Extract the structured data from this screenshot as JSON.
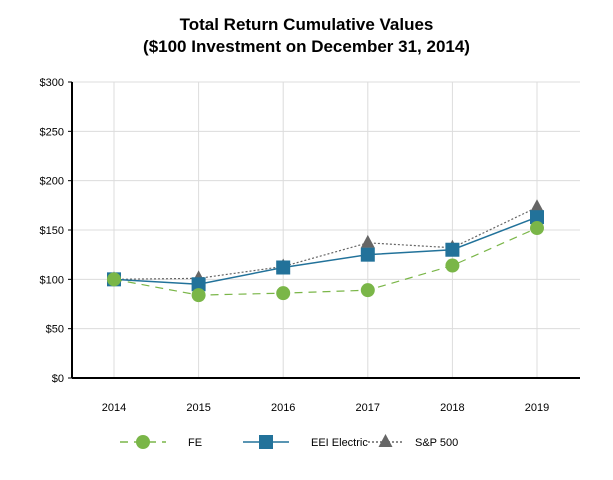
{
  "chart_data": {
    "type": "line",
    "title": "Total Return Cumulative Values",
    "subtitle": "($100 Investment on December 31, 2014)",
    "categories": [
      "2014",
      "2015",
      "2016",
      "2017",
      "2018",
      "2019"
    ],
    "ylim": [
      0,
      300
    ],
    "yticks": [
      "$0",
      "$50",
      "$100",
      "$150",
      "$200",
      "$250",
      "$300"
    ],
    "grid": true,
    "legend": "bottom",
    "series": [
      {
        "name": "FE",
        "values": [
          100,
          84,
          86,
          89,
          114,
          152
        ],
        "color": "#7ab648",
        "marker": "circle",
        "dash": "dashed"
      },
      {
        "name": "EEI Electric",
        "values": [
          100,
          95,
          112,
          125,
          130,
          163
        ],
        "color": "#22729a",
        "marker": "square",
        "dash": "solid"
      },
      {
        "name": "S&P 500",
        "values": [
          100,
          101,
          113,
          137,
          132,
          173
        ],
        "color": "#666666",
        "marker": "triangle",
        "dash": "dotted"
      }
    ]
  }
}
